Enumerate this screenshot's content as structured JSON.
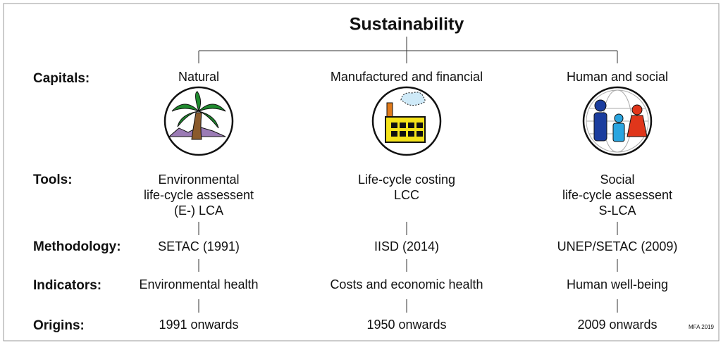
{
  "title": "Sustainability",
  "row_labels": {
    "capitals": "Capitals:",
    "tools": "Tools:",
    "methodology": "Methodology:",
    "indicators": "Indicators:",
    "origins": "Origins:"
  },
  "columns": [
    {
      "capital": "Natural",
      "tools": [
        "Environmental",
        "life-cycle assessent",
        "(E-) LCA"
      ],
      "methodology": "SETAC (1991)",
      "indicators": "Environmental health",
      "origins": "1991 onwards"
    },
    {
      "capital": "Manufactured and financial",
      "tools": [
        "Life-cycle costing",
        "LCC"
      ],
      "methodology": "IISD (2014)",
      "indicators": "Costs and economic health",
      "origins": "1950 onwards"
    },
    {
      "capital": "Human and social",
      "tools": [
        "Social",
        "life-cycle assessent",
        "S-LCA"
      ],
      "methodology": "UNEP/SETAC (2009)",
      "indicators": "Human well-being",
      "origins": "2009 onwards"
    }
  ],
  "credit": "MFA 2019"
}
